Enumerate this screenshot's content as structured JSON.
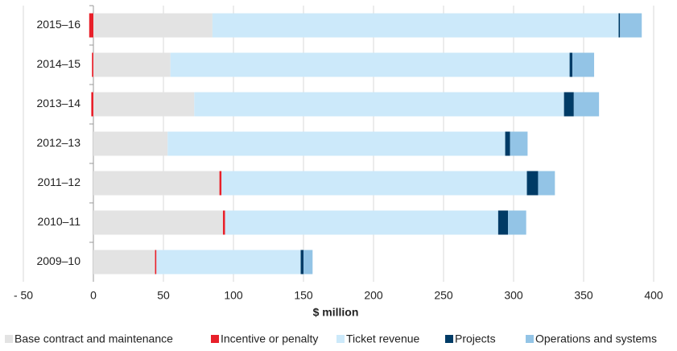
{
  "chart_data": {
    "type": "stacked-hbar",
    "categories": [
      "2015–16",
      "2014–15",
      "2013–14",
      "2012–13",
      "2011–12",
      "2010–11",
      "2009–10"
    ],
    "series": [
      {
        "name": "Base contract and maintenance",
        "color": "#e3e3e3",
        "values": [
          85,
          55,
          72,
          53,
          90,
          92.5,
          44
        ]
      },
      {
        "name": "Incentive or penalty",
        "color": "#e8202a",
        "values": [
          -3,
          -1,
          -1.5,
          0,
          1.5,
          1.5,
          1
        ]
      },
      {
        "name": "Ticket revenue",
        "color": "#cce9fa",
        "values": [
          290,
          285,
          264,
          241,
          218,
          195,
          103
        ]
      },
      {
        "name": "Projects",
        "color": "#003b66",
        "values": [
          1,
          2,
          7,
          3.5,
          8,
          7,
          2
        ]
      },
      {
        "name": "Operations and systems",
        "color": "#93c4e6",
        "values": [
          15.5,
          15.5,
          18,
          12.5,
          12,
          13,
          6.5
        ]
      }
    ],
    "xlim": [
      -50,
      400
    ],
    "xticks": [
      {
        "value": -50,
        "label": "- 50"
      },
      0,
      50,
      100,
      150,
      200,
      250,
      300,
      350,
      400
    ],
    "xlabel": "$ million",
    "grid": true
  }
}
